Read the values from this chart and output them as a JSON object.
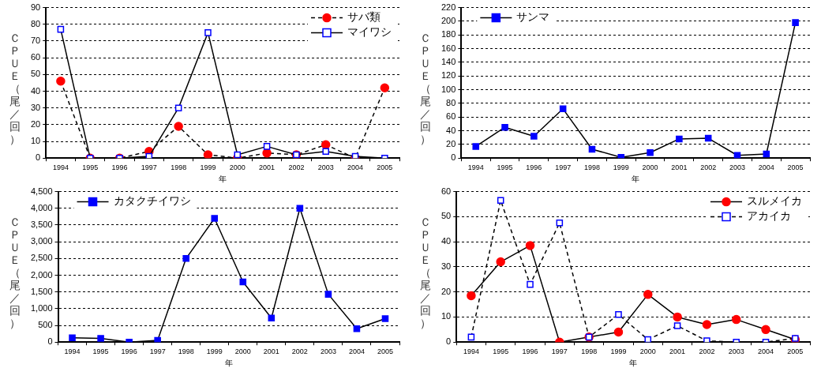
{
  "chart_data": [
    {
      "type": "line",
      "xlabel": "年",
      "ylabel": "ＣＰＵＥ（尾／回）",
      "categories": [
        "1994",
        "1995",
        "1996",
        "1997",
        "1998",
        "1999",
        "2000",
        "2001",
        "2002",
        "2003",
        "2004",
        "2005"
      ],
      "ylim": [
        0,
        90
      ],
      "yticks": [
        0,
        10,
        20,
        30,
        40,
        50,
        60,
        70,
        80,
        90
      ],
      "grid": "y",
      "legend": "top right",
      "series": [
        {
          "name": "サバ類",
          "color": "#ff0000",
          "marker": "circle",
          "line_style": "dashed",
          "values": [
            46,
            0,
            0,
            4,
            19,
            2,
            0,
            3,
            2,
            8,
            0,
            42
          ]
        },
        {
          "name": "マイワシ",
          "color": "#0000ff",
          "marker": "square",
          "line_style": "solid",
          "values": [
            77,
            0,
            0,
            1,
            30,
            75,
            2,
            7,
            2,
            4,
            1,
            0
          ]
        }
      ]
    },
    {
      "type": "line",
      "xlabel": "年",
      "ylabel": "ＣＰＵＥ（尾／回）",
      "categories": [
        "1994",
        "1995",
        "1996",
        "1997",
        "1998",
        "1999",
        "2000",
        "2001",
        "2002",
        "2003",
        "2004",
        "2005"
      ],
      "ylim": [
        0,
        220
      ],
      "yticks": [
        0,
        20,
        40,
        60,
        80,
        100,
        120,
        140,
        160,
        180,
        200,
        220
      ],
      "grid": "y",
      "legend": "top left",
      "marker": "square",
      "line_style": "solid",
      "series": [
        {
          "name": "サンマ",
          "color": "#0000ff",
          "values": [
            17,
            45,
            32,
            72,
            13,
            1,
            8,
            28,
            29,
            4,
            6,
            198
          ]
        }
      ]
    },
    {
      "type": "line",
      "xlabel": "年",
      "ylabel": "ＣＰＵＥ（尾／回）",
      "categories": [
        "1994",
        "1995",
        "1996",
        "1997",
        "1998",
        "1999",
        "2000",
        "2001",
        "2002",
        "2003",
        "2004",
        "2005"
      ],
      "ylim": [
        0,
        4500
      ],
      "yticks": [
        0,
        500,
        {
          "value": 1000,
          "label": "1,000"
        },
        {
          "value": 1500,
          "label": "1,500"
        },
        {
          "value": 2000,
          "label": "2,000"
        },
        {
          "value": 2500,
          "label": "2,500"
        },
        {
          "value": 3000,
          "label": "3,000"
        },
        {
          "value": 3500,
          "label": "3,500"
        },
        {
          "value": 4000,
          "label": "4,000"
        },
        {
          "value": 4500,
          "label": "4,500"
        }
      ],
      "grid": "y",
      "legend": "top left",
      "marker": "square",
      "line_style": "solid",
      "series": [
        {
          "name": "カタクチイワシ",
          "color": "#0000ff",
          "values": [
            130,
            110,
            0,
            50,
            2500,
            3700,
            1800,
            720,
            4000,
            1430,
            400,
            700
          ]
        }
      ]
    },
    {
      "type": "line",
      "xlabel": "年",
      "ylabel": "ＣＰＵＥ（尾／回）",
      "categories": [
        "1994",
        "1995",
        "1996",
        "1997",
        "1998",
        "1999",
        "2000",
        "2001",
        "2002",
        "2003",
        "2004",
        "2005"
      ],
      "ylim": [
        0,
        60
      ],
      "yticks": [
        0,
        10,
        20,
        30,
        40,
        50,
        60
      ],
      "grid": "y",
      "legend": "top right",
      "series": [
        {
          "name": "スルメイカ",
          "color": "#ff0000",
          "marker": "circle",
          "line_style": "solid",
          "values": [
            18.5,
            32,
            38.5,
            0,
            2,
            4,
            19,
            10,
            7,
            9,
            5,
            1
          ]
        },
        {
          "name": "アカイカ",
          "color": "#0000ff",
          "marker": "square",
          "line_style": "dashed",
          "values": [
            2,
            56.5,
            23,
            47.5,
            2,
            11,
            1,
            6.5,
            0.5,
            0,
            0,
            1.5
          ]
        }
      ]
    }
  ]
}
